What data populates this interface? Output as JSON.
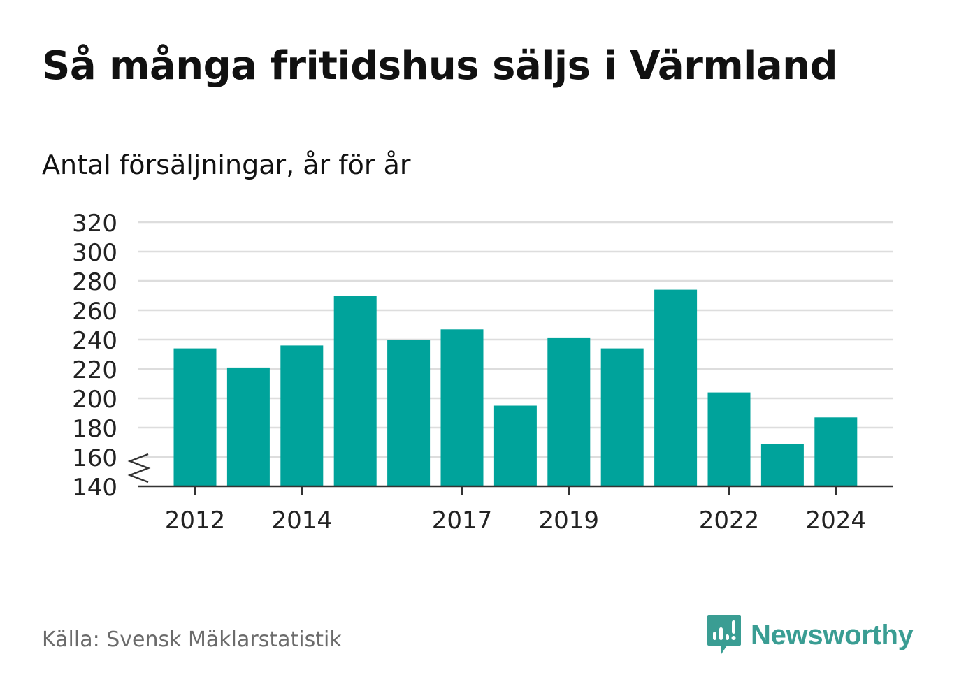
{
  "title": "Så många fritidshus säljs i Värmland",
  "subtitle": "Antal försäljningar, år för år",
  "source": "Källa: Svensk Mäklarstatistik",
  "brand": {
    "name": "Newsworthy",
    "icon": "newsworthy-logo-icon",
    "color": "#3a9d93"
  },
  "colors": {
    "bar": "#00a39b",
    "grid": "#dddddd",
    "axis": "#333333",
    "tick_text": "#222222"
  },
  "chart_data": {
    "type": "bar",
    "x": [
      2012,
      2013,
      2014,
      2015,
      2016,
      2017,
      2018,
      2019,
      2020,
      2021,
      2022,
      2023,
      2024
    ],
    "values": [
      234,
      221,
      236,
      270,
      240,
      247,
      195,
      241,
      234,
      274,
      204,
      169,
      187
    ],
    "x_tick_labels": [
      "2012",
      "2014",
      "2017",
      "2019",
      "2022",
      "2024"
    ],
    "y_tick_labels": [
      "140",
      "160",
      "180",
      "200",
      "220",
      "240",
      "260",
      "280",
      "300",
      "320"
    ],
    "ylim": [
      140,
      320
    ],
    "y_axis_break": true,
    "grid": true,
    "xlabel": "",
    "ylabel": ""
  }
}
